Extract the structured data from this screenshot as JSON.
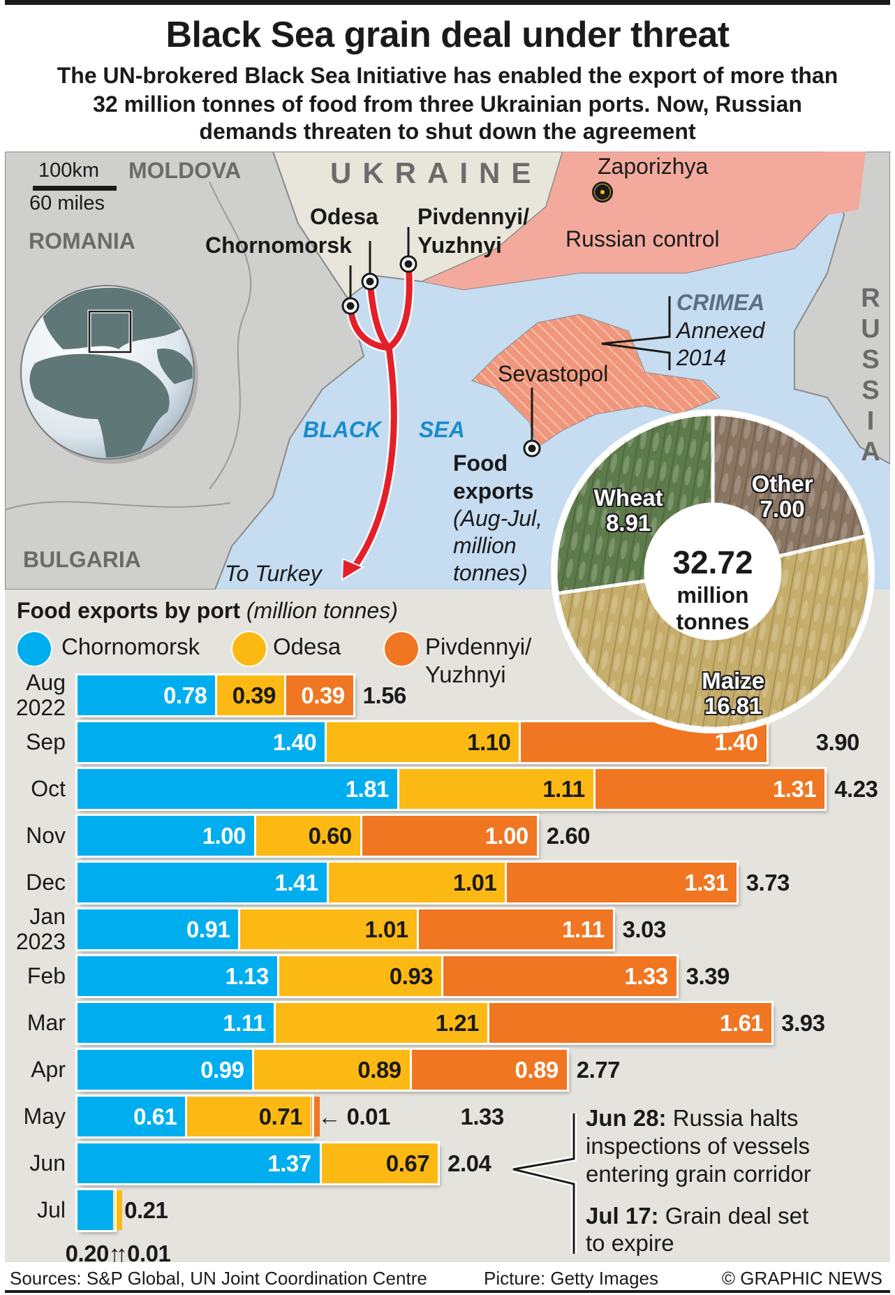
{
  "header": {
    "title": "Black Sea grain deal under threat",
    "subtitle_lines": [
      "The UN-brokered Black Sea Initiative has enabled the export of more than",
      "32 million tonnes of food from three Ukrainian ports. Now, Russian",
      "demands threaten to shut down the agreement"
    ]
  },
  "map": {
    "scale_km": "100km",
    "scale_miles": "60 miles",
    "countries": {
      "moldova": "MOLDOVA",
      "ukraine": "UKRAINE",
      "romania": "ROMANIA",
      "bulgaria": "BULGARIA",
      "russia": "RUSSIA"
    },
    "zaporizhya": "Zaporizhya",
    "nuclear_icon": "radiation-icon",
    "ports": {
      "odesa": "Odesa",
      "chornomorsk": "Chornomorsk",
      "pivdennyi_1": "Pivdennyi/",
      "pivdennyi_2": "Yuzhnyi"
    },
    "russian_control": "Russian control",
    "crimea": {
      "name": "CRIMEA",
      "line1": "Annexed",
      "line2": "2014"
    },
    "sevastopol": "Sevastopol",
    "sea": {
      "word1": "BLACK",
      "word2": "SEA"
    },
    "to_turkey": "To Turkey",
    "food_exports": {
      "line1": "Food",
      "line2": "exports",
      "line3": "(Aug-Jul,",
      "line4": "million",
      "line5": "tonnes)"
    },
    "colors": {
      "sea": "#c6dcf0",
      "land": "#cfcfcd",
      "ukraine": "#e8e6da",
      "russian_control": "#f3aa9c",
      "crimea": "#f0967a",
      "route": "#e3202a"
    }
  },
  "pie": {
    "total": "32.72",
    "total_unit_1": "million",
    "total_unit_2": "tonnes",
    "slices": [
      {
        "name": "Other",
        "value": 7.0,
        "color": "#8a7562"
      },
      {
        "name": "Maize",
        "value": 16.81,
        "color": "#c6ad6a"
      },
      {
        "name": "Wheat",
        "value": 8.91,
        "color": "#5e7c4b"
      }
    ]
  },
  "chart_data": {
    "type": "bar",
    "stacked": true,
    "orientation": "horizontal",
    "title": "Food exports by port",
    "unit": "(million tonnes)",
    "categories": [
      "Aug 2022",
      "Sep",
      "Oct",
      "Nov",
      "Dec",
      "Jan 2023",
      "Feb",
      "Mar",
      "Apr",
      "May",
      "Jun",
      "Jul"
    ],
    "series": [
      {
        "name": "Chornomorsk",
        "color": "#00aeef",
        "values": [
          0.78,
          1.4,
          1.81,
          1.0,
          1.41,
          0.91,
          1.13,
          1.11,
          0.99,
          0.61,
          1.37,
          0.2
        ]
      },
      {
        "name": "Odesa",
        "color": "#fdb913",
        "values": [
          0.39,
          1.1,
          1.11,
          0.6,
          1.01,
          1.01,
          0.93,
          1.21,
          0.89,
          0.71,
          0.67,
          0.01
        ]
      },
      {
        "name": "Pivdennyi/ Yuzhnyi",
        "color": "#f07622",
        "values": [
          0.39,
          1.4,
          1.31,
          1.0,
          1.31,
          1.11,
          1.33,
          1.61,
          0.89,
          0.01,
          0,
          0
        ]
      }
    ],
    "totals": [
      1.56,
      3.9,
      4.23,
      2.6,
      3.73,
      3.03,
      3.39,
      3.93,
      2.77,
      1.33,
      2.04,
      0.21
    ],
    "legend": {
      "items": [
        "Chornomorsk",
        "Odesa",
        "Pivdennyi/",
        "Yuzhnyi"
      ],
      "placement": "top"
    }
  },
  "annotations": {
    "jun28_date": "Jun 28:",
    "jun28_lines": [
      " Russia halts",
      "inspections of vessels",
      "entering grain corridor"
    ],
    "jul17_date": "Jul 17:",
    "jul17_lines": [
      " Grain deal set",
      "to expire"
    ]
  },
  "footer": {
    "sources": "Sources: S&P Global, UN Joint Coordination Centre",
    "picture": "Picture: Getty Images",
    "credit": "© GRAPHIC NEWS"
  }
}
